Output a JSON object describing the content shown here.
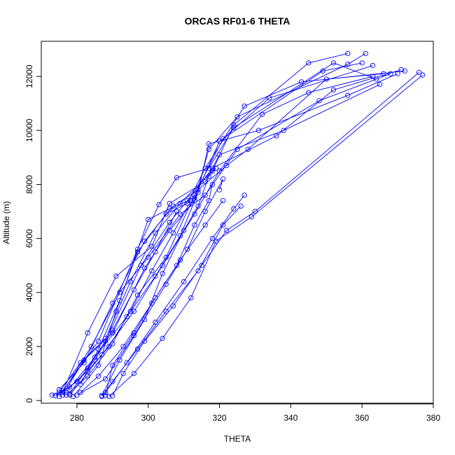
{
  "chart_data": {
    "type": "line",
    "title": "ORCAS RF01-6 THETA",
    "xlabel": "THETA",
    "ylabel": "Altitude (m)",
    "xlim": [
      270,
      380
    ],
    "ylim": [
      -100,
      13300
    ],
    "x_ticks": [
      280,
      300,
      320,
      340,
      360,
      380
    ],
    "y_ticks": [
      0,
      2000,
      4000,
      6000,
      8000,
      10000,
      12000
    ],
    "grid": false,
    "legend": "none",
    "marker": "open-circle",
    "color": "#0000ff",
    "series": [
      {
        "points": [
          [
            274,
            180
          ],
          [
            275,
            300
          ],
          [
            281,
            1400
          ],
          [
            288,
            2300
          ],
          [
            295,
            4400
          ],
          [
            302,
            6200
          ],
          [
            309,
            7300
          ],
          [
            318,
            8500
          ],
          [
            324,
            10200
          ],
          [
            345,
            12500
          ],
          [
            356,
            12850
          ]
        ]
      },
      {
        "points": [
          [
            361,
            12850
          ],
          [
            356,
            12450
          ],
          [
            325,
            10500
          ],
          [
            317,
            9300
          ],
          [
            313,
            7400
          ],
          [
            306,
            6300
          ],
          [
            299,
            4900
          ],
          [
            290,
            2500
          ],
          [
            282,
            1500
          ],
          [
            276,
            200
          ]
        ]
      },
      {
        "points": [
          [
            278,
            250
          ],
          [
            283,
            1200
          ],
          [
            288,
            2200
          ],
          [
            298,
            5000
          ],
          [
            306,
            6600
          ],
          [
            311,
            7400
          ],
          [
            318,
            8600
          ],
          [
            336,
            9800
          ],
          [
            352,
            11500
          ],
          [
            371,
            12250
          ]
        ]
      },
      {
        "points": [
          [
            370,
            12100
          ],
          [
            356,
            11300
          ],
          [
            331,
            10000
          ],
          [
            317,
            9500
          ],
          [
            314,
            7700
          ],
          [
            309,
            6100
          ],
          [
            302,
            4600
          ],
          [
            294,
            3100
          ],
          [
            285,
            1600
          ],
          [
            277,
            300
          ]
        ]
      },
      {
        "points": [
          [
            275,
            150
          ],
          [
            286,
            2200
          ],
          [
            297,
            5600
          ],
          [
            303,
            7250
          ],
          [
            308,
            8250
          ],
          [
            317,
            8600
          ],
          [
            324,
            10100
          ],
          [
            352,
            12500
          ],
          [
            364,
            11900
          ]
        ]
      },
      {
        "points": [
          [
            365,
            11700
          ],
          [
            338,
            10000
          ],
          [
            320,
            9100
          ],
          [
            316,
            8100
          ],
          [
            306,
            7300
          ],
          [
            301,
            5700
          ],
          [
            291,
            4600
          ],
          [
            283,
            2500
          ],
          [
            276,
            300
          ]
        ]
      },
      {
        "points": [
          [
            279,
            150
          ],
          [
            286,
            1300
          ],
          [
            291,
            3300
          ],
          [
            300,
            6700
          ],
          [
            306,
            7100
          ],
          [
            313,
            7500
          ],
          [
            320,
            9600
          ],
          [
            349,
            12200
          ],
          [
            360,
            12500
          ]
        ]
      },
      {
        "points": [
          [
            372,
            12200
          ],
          [
            343,
            11800
          ],
          [
            327,
            10900
          ],
          [
            316,
            8600
          ],
          [
            311,
            7300
          ],
          [
            305,
            6900
          ],
          [
            297,
            5500
          ],
          [
            292,
            3700
          ],
          [
            286,
            1900
          ],
          [
            281,
            600
          ]
        ]
      },
      {
        "points": [
          [
            275,
            400
          ],
          [
            282,
            1400
          ],
          [
            290,
            3600
          ],
          [
            299,
            5900
          ],
          [
            307,
            7200
          ],
          [
            314,
            7800
          ],
          [
            322,
            8700
          ],
          [
            328,
            9300
          ],
          [
            350,
            11900
          ],
          [
            366,
            12100
          ]
        ]
      },
      {
        "points": [
          [
            363,
            12400
          ],
          [
            334,
            11200
          ],
          [
            321,
            9700
          ],
          [
            313,
            7600
          ],
          [
            305,
            5300
          ],
          [
            297,
            3900
          ],
          [
            290,
            2100
          ],
          [
            283,
            900
          ],
          [
            277,
            200
          ]
        ]
      },
      {
        "points": [
          [
            276,
            300
          ],
          [
            284,
            2000
          ],
          [
            292,
            4000
          ],
          [
            300,
            5300
          ],
          [
            309,
            6900
          ],
          [
            316,
            7600
          ],
          [
            325,
            9300
          ],
          [
            348,
            11100
          ],
          [
            368,
            12100
          ]
        ]
      },
      {
        "points": [
          [
            363,
            12000
          ],
          [
            345,
            11400
          ],
          [
            332,
            10600
          ],
          [
            320,
            8500
          ],
          [
            313,
            6900
          ],
          [
            304,
            5000
          ],
          [
            296,
            3300
          ],
          [
            287,
            1700
          ],
          [
            278,
            200
          ]
        ]
      },
      {
        "points": [
          [
            287,
            180
          ],
          [
            292,
            1500
          ],
          [
            299,
            3000
          ],
          [
            304,
            4700
          ],
          [
            310,
            6300
          ],
          [
            314,
            7200
          ],
          [
            317,
            8300
          ],
          [
            319,
            8600
          ]
        ]
      },
      {
        "points": [
          [
            318,
            8000
          ],
          [
            317,
            7400
          ],
          [
            313,
            6500
          ],
          [
            308,
            5000
          ],
          [
            302,
            3800
          ],
          [
            296,
            2500
          ],
          [
            290,
            1300
          ],
          [
            288,
            180
          ]
        ]
      },
      {
        "points": [
          [
            280,
            200
          ],
          [
            288,
            800
          ],
          [
            296,
            2400
          ],
          [
            305,
            4300
          ],
          [
            311,
            5600
          ],
          [
            316,
            7000
          ],
          [
            321,
            8200
          ],
          [
            320,
            7800
          ]
        ]
      },
      {
        "points": [
          [
            321,
            7400
          ],
          [
            316,
            6500
          ],
          [
            309,
            5200
          ],
          [
            301,
            3600
          ],
          [
            293,
            2000
          ],
          [
            286,
            900
          ],
          [
            281,
            300
          ]
        ]
      },
      {
        "points": [
          [
            288,
            300
          ],
          [
            294,
            1400
          ],
          [
            302,
            2900
          ],
          [
            310,
            4400
          ],
          [
            318,
            6000
          ],
          [
            324,
            7100
          ],
          [
            327,
            7600
          ]
        ]
      },
      {
        "points": [
          [
            326,
            7200
          ],
          [
            321,
            6500
          ],
          [
            314,
            4800
          ],
          [
            305,
            3300
          ],
          [
            297,
            1900
          ],
          [
            290,
            700
          ],
          [
            287,
            150
          ]
        ]
      },
      {
        "points": [
          [
            289,
            150
          ],
          [
            296,
            1000
          ],
          [
            304,
            2300
          ],
          [
            312,
            3800
          ],
          [
            319,
            5900
          ],
          [
            329,
            6800
          ],
          [
            377,
            12050
          ]
        ]
      },
      {
        "points": [
          [
            376,
            12150
          ],
          [
            330,
            7000
          ],
          [
            322,
            6300
          ],
          [
            315,
            5000
          ],
          [
            307,
            3500
          ],
          [
            299,
            2200
          ],
          [
            293,
            1000
          ],
          [
            290,
            170
          ]
        ]
      },
      {
        "points": [
          [
            273,
            200
          ],
          [
            276,
            350
          ],
          [
            280,
            700
          ],
          [
            285,
            1500
          ],
          [
            290,
            2600
          ],
          [
            296,
            4100
          ],
          [
            302,
            5500
          ],
          [
            308,
            7000
          ]
        ]
      },
      {
        "points": [
          [
            274,
            180
          ],
          [
            278,
            500
          ],
          [
            283,
            1100
          ],
          [
            289,
            2000
          ],
          [
            295,
            3300
          ],
          [
            301,
            4800
          ],
          [
            307,
            6200
          ],
          [
            312,
            7400
          ]
        ]
      }
    ]
  }
}
